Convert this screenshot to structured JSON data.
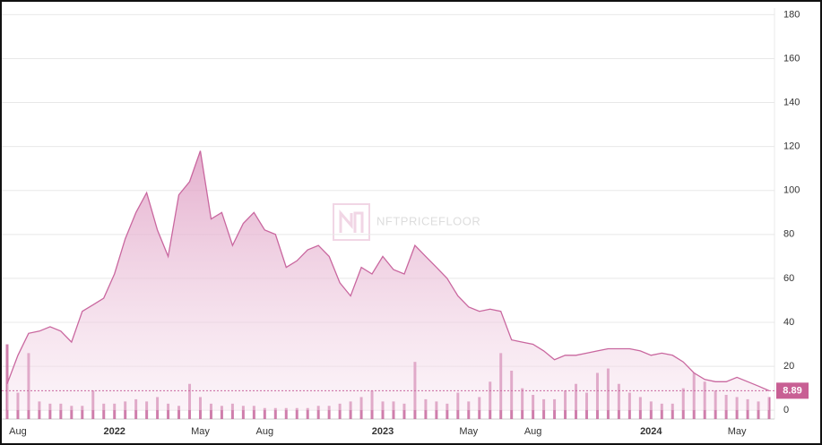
{
  "chart_data": {
    "type": "area",
    "watermark": "NFTPRICEFLOOR",
    "color": "#c9679f",
    "categories": [
      null,
      "Aug",
      null,
      null,
      null,
      null,
      null,
      null,
      null,
      null,
      "2022",
      null,
      null,
      null,
      null,
      null,
      null,
      null,
      "May",
      null,
      null,
      null,
      null,
      null,
      "Aug",
      null,
      null,
      null,
      null,
      null,
      null,
      null,
      null,
      null,
      null,
      "2023",
      null,
      null,
      null,
      null,
      null,
      null,
      null,
      "May",
      null,
      null,
      null,
      null,
      null,
      "Aug",
      null,
      null,
      null,
      null,
      null,
      null,
      null,
      null,
      null,
      null,
      "2024",
      null,
      null,
      null,
      null,
      null,
      null,
      null,
      "May",
      null,
      null,
      null
    ],
    "values": [
      12,
      25,
      35,
      36,
      38,
      36,
      31,
      45,
      48,
      51,
      62,
      78,
      90,
      99,
      82,
      70,
      98,
      104,
      118,
      87,
      90,
      75,
      85,
      90,
      82,
      80,
      65,
      68,
      73,
      75,
      70,
      58,
      52,
      65,
      62,
      70,
      64,
      62,
      75,
      70,
      65,
      60,
      52,
      47,
      45,
      46,
      45,
      32,
      31,
      30,
      27,
      23,
      25,
      25,
      26,
      27,
      28,
      28,
      28,
      27,
      25,
      26,
      25,
      22,
      17,
      14,
      13,
      13,
      15,
      13,
      11,
      8.89
    ],
    "volume": {
      "color": "#c7689e",
      "values": [
        30,
        8,
        26,
        4,
        3,
        3,
        2,
        2,
        9,
        3,
        3,
        4,
        5,
        4,
        6,
        3,
        2,
        12,
        6,
        3,
        2,
        3,
        2,
        2,
        1,
        1,
        1,
        1,
        1,
        2,
        2,
        3,
        4,
        6,
        9,
        4,
        4,
        3,
        22,
        5,
        4,
        3,
        8,
        4,
        6,
        13,
        26,
        18,
        10,
        7,
        5,
        5,
        9,
        12,
        8,
        17,
        19,
        12,
        8,
        6,
        4,
        3,
        3,
        10,
        17,
        13,
        9,
        7,
        6,
        5,
        4,
        6
      ]
    },
    "ylim": [
      -4,
      183
    ],
    "yticks": [
      0,
      20,
      40,
      60,
      80,
      100,
      120,
      140,
      160,
      180
    ],
    "grid": true
  }
}
